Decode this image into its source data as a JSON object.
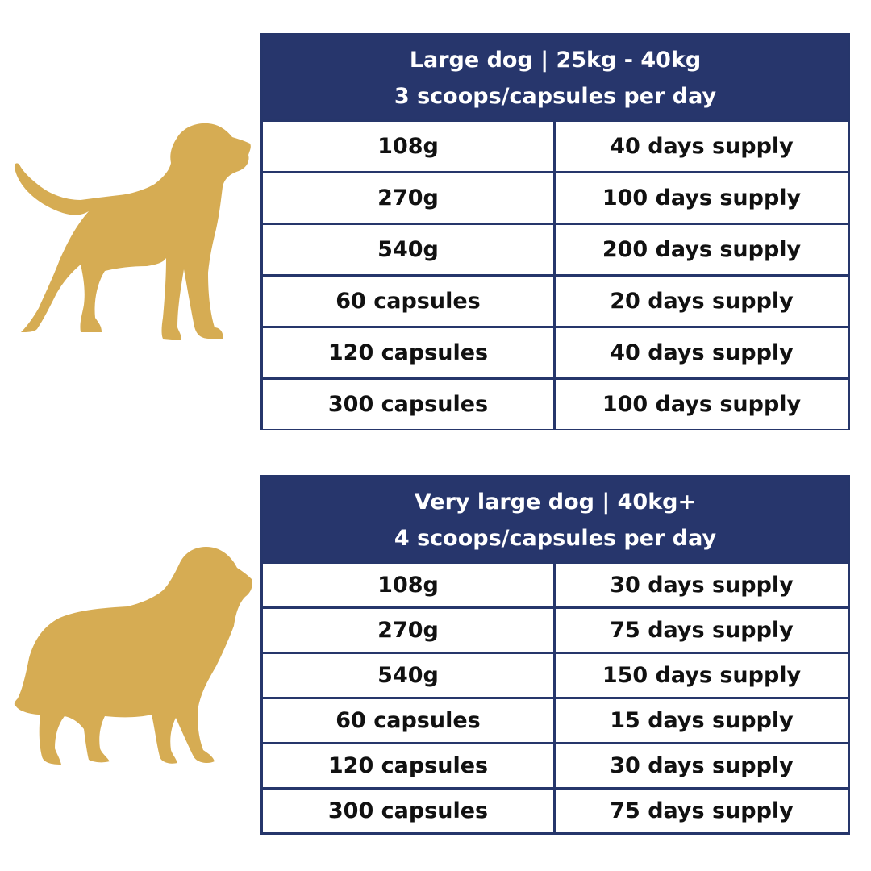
{
  "colors": {
    "header_bg": "#27366c",
    "header_text": "#ffffff",
    "border": "#26366b",
    "dog_silhouette": "#d6ac53",
    "cell_text": "#111111"
  },
  "tables": [
    {
      "title_line1": "Large dog | 25kg - 40kg",
      "title_line2": "3 scoops/capsules per day",
      "rows": [
        {
          "size": "108g",
          "supply": "40 days supply"
        },
        {
          "size": "270g",
          "supply": "100 days supply"
        },
        {
          "size": "540g",
          "supply": "200 days supply"
        },
        {
          "size": "60 capsules",
          "supply": "20 days supply"
        },
        {
          "size": "120 capsules",
          "supply": "40 days supply"
        },
        {
          "size": "300 capsules",
          "supply": "100 days supply"
        }
      ]
    },
    {
      "title_line1": "Very large dog | 40kg+",
      "title_line2": "4 scoops/capsules per day",
      "rows": [
        {
          "size": "108g",
          "supply": "30 days supply"
        },
        {
          "size": "270g",
          "supply": "75 days supply"
        },
        {
          "size": "540g",
          "supply": "150 days supply"
        },
        {
          "size": "60 capsules",
          "supply": "15 days supply"
        },
        {
          "size": "120 capsules",
          "supply": "30 days supply"
        },
        {
          "size": "300 capsules",
          "supply": "75 days supply"
        }
      ]
    }
  ],
  "icons": [
    "large-dog-icon",
    "very-large-dog-icon"
  ]
}
